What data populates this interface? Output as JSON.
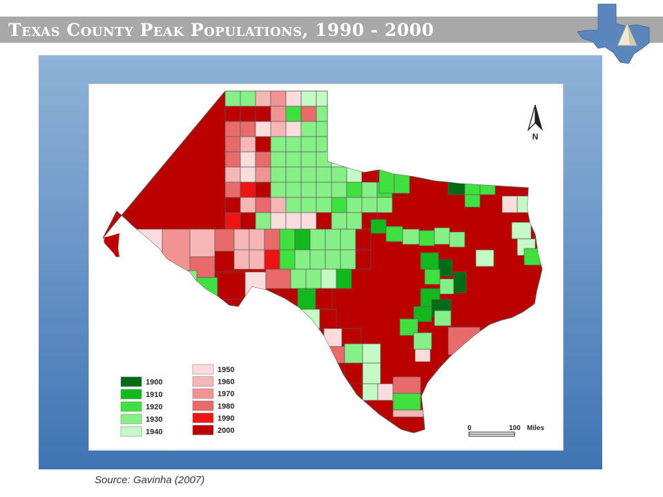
{
  "slide": {
    "title": "Texas County Peak Populations, 1990 - 2000",
    "source": "Source:  Gavinha (2007)"
  },
  "logo": {
    "icon": "texas-state-logo-icon"
  },
  "map": {
    "north_label": "N",
    "north_icon": "north-arrow-icon",
    "scale": {
      "start": "0",
      "end": "100",
      "unit": "Miles"
    },
    "legend": [
      {
        "label": "1900",
        "color": "#006c15"
      },
      {
        "label": "1910",
        "color": "#12b81c"
      },
      {
        "label": "1920",
        "color": "#3fe03f"
      },
      {
        "label": "1930",
        "color": "#86f086"
      },
      {
        "label": "1940",
        "color": "#c4f8c4"
      },
      {
        "label": "1950",
        "color": "#fbdcdc"
      },
      {
        "label": "1960",
        "color": "#f7b6b6"
      },
      {
        "label": "1970",
        "color": "#f19393"
      },
      {
        "label": "1980",
        "color": "#e96a6a"
      },
      {
        "label": "1990",
        "color": "#ee1414"
      },
      {
        "label": "2000",
        "color": "#bb0000"
      }
    ]
  }
}
